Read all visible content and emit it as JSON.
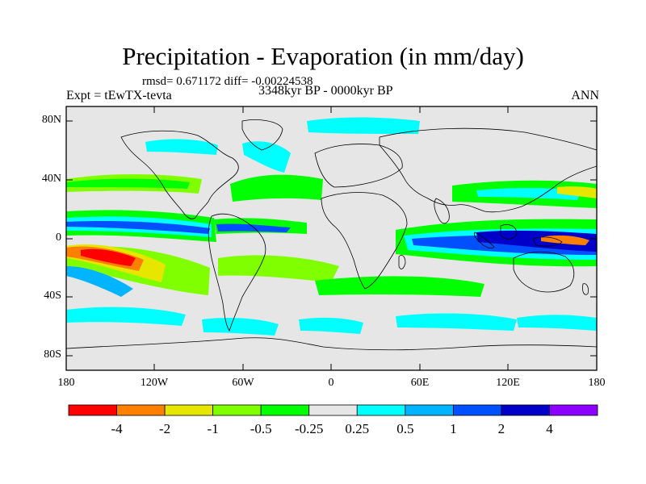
{
  "figure": {
    "title": "Precipitation - Evaporation (in mm/day)",
    "stats": "rmsd= 0.671172 diff= -0.00224538",
    "period": "3348kyr BP - 0000kyr BP",
    "experiment": "Expt = tEwTX-tevta",
    "season": "ANN"
  },
  "axes": {
    "lat_labels": [
      "80N",
      "40N",
      "0",
      "40S",
      "80S"
    ],
    "lon_labels": [
      "180",
      "120W",
      "60W",
      "0",
      "60E",
      "120E",
      "180"
    ]
  },
  "colorbar": {
    "labels": [
      "-4",
      "-2",
      "-1",
      "-0.5",
      "-0.25",
      "0.25",
      "0.5",
      "1",
      "2",
      "4"
    ],
    "colors": [
      "#ff0000",
      "#ff8000",
      "#e6e600",
      "#80ff00",
      "#00ff00",
      "#e6e6e6",
      "#00ffff",
      "#00b4ff",
      "#0050ff",
      "#0000c8",
      "#8c00ff"
    ]
  },
  "chart_data": {
    "type": "heatmap",
    "title": "Precipitation - Evaporation (in mm/day)",
    "subtitle": "3348kyr BP - 0000kyr BP",
    "variable": "Precipitation - Evaporation",
    "units": "mm/day",
    "contour_levels": [
      -4,
      -2,
      -1,
      -0.5,
      -0.25,
      0.25,
      0.5,
      1,
      2,
      4
    ],
    "x_ticks": [
      "180",
      "120W",
      "60W",
      "0",
      "60E",
      "120E",
      "180"
    ],
    "y_ticks": [
      "80N",
      "40N",
      "0",
      "40S",
      "80S"
    ],
    "lon_range": [
      -180,
      180
    ],
    "lat_range": [
      -90,
      90
    ]
  }
}
